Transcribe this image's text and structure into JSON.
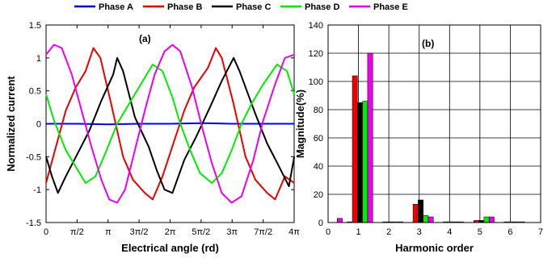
{
  "chart_data": [
    {
      "type": "line",
      "panel_label": "(a)",
      "xlabel": "Electrical angle (rd)",
      "ylabel": "Normalized current",
      "xlim": [
        0,
        12.566
      ],
      "ylim": [
        -1.5,
        1.5
      ],
      "xticks": [
        {
          "value": 0,
          "label": "0"
        },
        {
          "value": 1.5708,
          "label": "π/2"
        },
        {
          "value": 3.1416,
          "label": "π"
        },
        {
          "value": 4.7124,
          "label": "3π/2"
        },
        {
          "value": 6.2832,
          "label": "2π"
        },
        {
          "value": 7.854,
          "label": "5π/2"
        },
        {
          "value": 9.4248,
          "label": "3π"
        },
        {
          "value": 10.9956,
          "label": "7π/2"
        },
        {
          "value": 12.5664,
          "label": "4π"
        }
      ],
      "yticks": [
        "-1.5",
        "-1",
        "-0.5",
        "0",
        "0.5",
        "1",
        "1.5"
      ],
      "grid": false,
      "series": [
        {
          "name": "Phase A",
          "color": "#0000ee",
          "points": [
            [
              0,
              0.0
            ],
            [
              1.57,
              0.0
            ],
            [
              3.14,
              -0.01
            ],
            [
              4.71,
              0.0
            ],
            [
              6.28,
              0.0
            ],
            [
              7.85,
              0.01
            ],
            [
              9.42,
              0.0
            ],
            [
              10.99,
              0.0
            ],
            [
              12.57,
              0.0
            ]
          ]
        },
        {
          "name": "Phase B",
          "color": "#ee0000",
          "points": [
            [
              0,
              -0.9
            ],
            [
              0.5,
              -0.35
            ],
            [
              1.0,
              0.2
            ],
            [
              1.5,
              0.55
            ],
            [
              2.0,
              0.8
            ],
            [
              2.4,
              1.15
            ],
            [
              2.75,
              1.0
            ],
            [
              3.3,
              0.3
            ],
            [
              3.9,
              -0.5
            ],
            [
              4.4,
              -0.85
            ],
            [
              5.0,
              -1.05
            ],
            [
              5.4,
              -1.15
            ],
            [
              5.9,
              -0.8
            ],
            [
              6.5,
              -0.25
            ],
            [
              7.0,
              0.2
            ],
            [
              7.5,
              0.55
            ],
            [
              8.2,
              0.85
            ],
            [
              8.6,
              1.15
            ],
            [
              8.9,
              1.0
            ],
            [
              9.5,
              0.3
            ],
            [
              10.1,
              -0.5
            ],
            [
              10.6,
              -0.85
            ],
            [
              11.2,
              -1.05
            ],
            [
              11.6,
              -1.15
            ],
            [
              12.1,
              -0.8
            ],
            [
              12.57,
              -0.9
            ]
          ]
        },
        {
          "name": "Phase C",
          "color": "#000000",
          "points": [
            [
              0,
              -0.5
            ],
            [
              0.3,
              -0.8
            ],
            [
              0.6,
              -1.05
            ],
            [
              1.0,
              -0.8
            ],
            [
              1.6,
              -0.45
            ],
            [
              2.2,
              -0.1
            ],
            [
              2.8,
              0.35
            ],
            [
              3.4,
              0.75
            ],
            [
              3.6,
              1.0
            ],
            [
              3.9,
              0.8
            ],
            [
              4.5,
              0.1
            ],
            [
              5.2,
              -0.35
            ],
            [
              5.6,
              -0.7
            ],
            [
              6.0,
              -1.0
            ],
            [
              6.4,
              -1.05
            ],
            [
              7.0,
              -0.55
            ],
            [
              7.6,
              -0.2
            ],
            [
              8.3,
              0.25
            ],
            [
              8.9,
              0.65
            ],
            [
              9.5,
              1.0
            ],
            [
              9.8,
              0.8
            ],
            [
              10.6,
              0.15
            ],
            [
              11.2,
              -0.3
            ],
            [
              11.8,
              -0.65
            ],
            [
              12.3,
              -0.95
            ],
            [
              12.57,
              -0.5
            ]
          ]
        },
        {
          "name": "Phase D",
          "color": "#00ee00",
          "points": [
            [
              0,
              0.45
            ],
            [
              0.4,
              0.05
            ],
            [
              1.0,
              -0.4
            ],
            [
              1.6,
              -0.7
            ],
            [
              2.0,
              -0.9
            ],
            [
              2.5,
              -0.8
            ],
            [
              3.0,
              -0.45
            ],
            [
              3.6,
              0.0
            ],
            [
              4.2,
              0.3
            ],
            [
              4.8,
              0.6
            ],
            [
              5.4,
              0.9
            ],
            [
              5.9,
              0.8
            ],
            [
              6.4,
              0.4
            ],
            [
              6.8,
              0.0
            ],
            [
              7.3,
              -0.4
            ],
            [
              7.8,
              -0.75
            ],
            [
              8.4,
              -0.9
            ],
            [
              8.9,
              -0.75
            ],
            [
              9.4,
              -0.4
            ],
            [
              9.9,
              0.0
            ],
            [
              10.4,
              0.3
            ],
            [
              11.0,
              0.6
            ],
            [
              11.7,
              0.9
            ],
            [
              12.2,
              0.8
            ],
            [
              12.57,
              0.45
            ]
          ]
        },
        {
          "name": "Phase E",
          "color": "#ee00ee",
          "points": [
            [
              0,
              1.05
            ],
            [
              0.4,
              1.2
            ],
            [
              0.8,
              1.15
            ],
            [
              1.3,
              0.75
            ],
            [
              1.8,
              0.2
            ],
            [
              2.3,
              -0.35
            ],
            [
              2.8,
              -0.85
            ],
            [
              3.2,
              -1.15
            ],
            [
              3.6,
              -1.2
            ],
            [
              4.0,
              -1.0
            ],
            [
              4.5,
              -0.4
            ],
            [
              5.0,
              0.2
            ],
            [
              5.5,
              0.75
            ],
            [
              6.0,
              1.1
            ],
            [
              6.4,
              1.2
            ],
            [
              6.8,
              1.1
            ],
            [
              7.4,
              0.55
            ],
            [
              7.9,
              -0.05
            ],
            [
              8.4,
              -0.6
            ],
            [
              8.9,
              -1.05
            ],
            [
              9.4,
              -1.2
            ],
            [
              9.9,
              -1.1
            ],
            [
              10.5,
              -0.55
            ],
            [
              11.0,
              0.05
            ],
            [
              11.6,
              0.6
            ],
            [
              12.1,
              1.0
            ],
            [
              12.57,
              1.05
            ]
          ]
        }
      ]
    },
    {
      "type": "bar",
      "panel_label": "(b)",
      "xlabel": "Harmonic order",
      "ylabel": "Magnitude(%)",
      "xlim": [
        0,
        7
      ],
      "ylim": [
        0,
        140
      ],
      "xticks": [
        "0",
        "1",
        "2",
        "3",
        "4",
        "5",
        "6",
        "7"
      ],
      "yticks": [
        "0",
        "20",
        "40",
        "60",
        "80",
        "100",
        "120",
        "140"
      ],
      "grid": true,
      "series_colors": [
        "#0000ee",
        "#ee0000",
        "#000000",
        "#00ee00",
        "#ee00ee"
      ],
      "harmonics": [
        0,
        1,
        2,
        3,
        4,
        5,
        6
      ],
      "series": [
        {
          "name": "Phase A",
          "values": [
            0,
            0.5,
            0,
            0,
            0,
            0,
            0
          ]
        },
        {
          "name": "Phase B",
          "values": [
            0,
            104,
            0.5,
            13,
            0.5,
            1.5,
            0.5
          ]
        },
        {
          "name": "Phase C",
          "values": [
            0,
            85,
            0.5,
            16,
            0.5,
            1.5,
            0.5
          ]
        },
        {
          "name": "Phase D",
          "values": [
            0,
            86,
            0.5,
            5,
            0.5,
            4,
            0.5
          ]
        },
        {
          "name": "Phase E",
          "values": [
            3,
            120,
            0.5,
            4,
            0.5,
            4,
            0.5
          ]
        }
      ]
    }
  ],
  "legend": {
    "placement": "top",
    "entries": [
      {
        "label": "Phase A",
        "color": "#0000ee"
      },
      {
        "label": "Phase B",
        "color": "#ee0000"
      },
      {
        "label": "Phase C",
        "color": "#000000"
      },
      {
        "label": "Phase D",
        "color": "#00ee00"
      },
      {
        "label": "Phase E",
        "color": "#ee00ee"
      }
    ]
  }
}
